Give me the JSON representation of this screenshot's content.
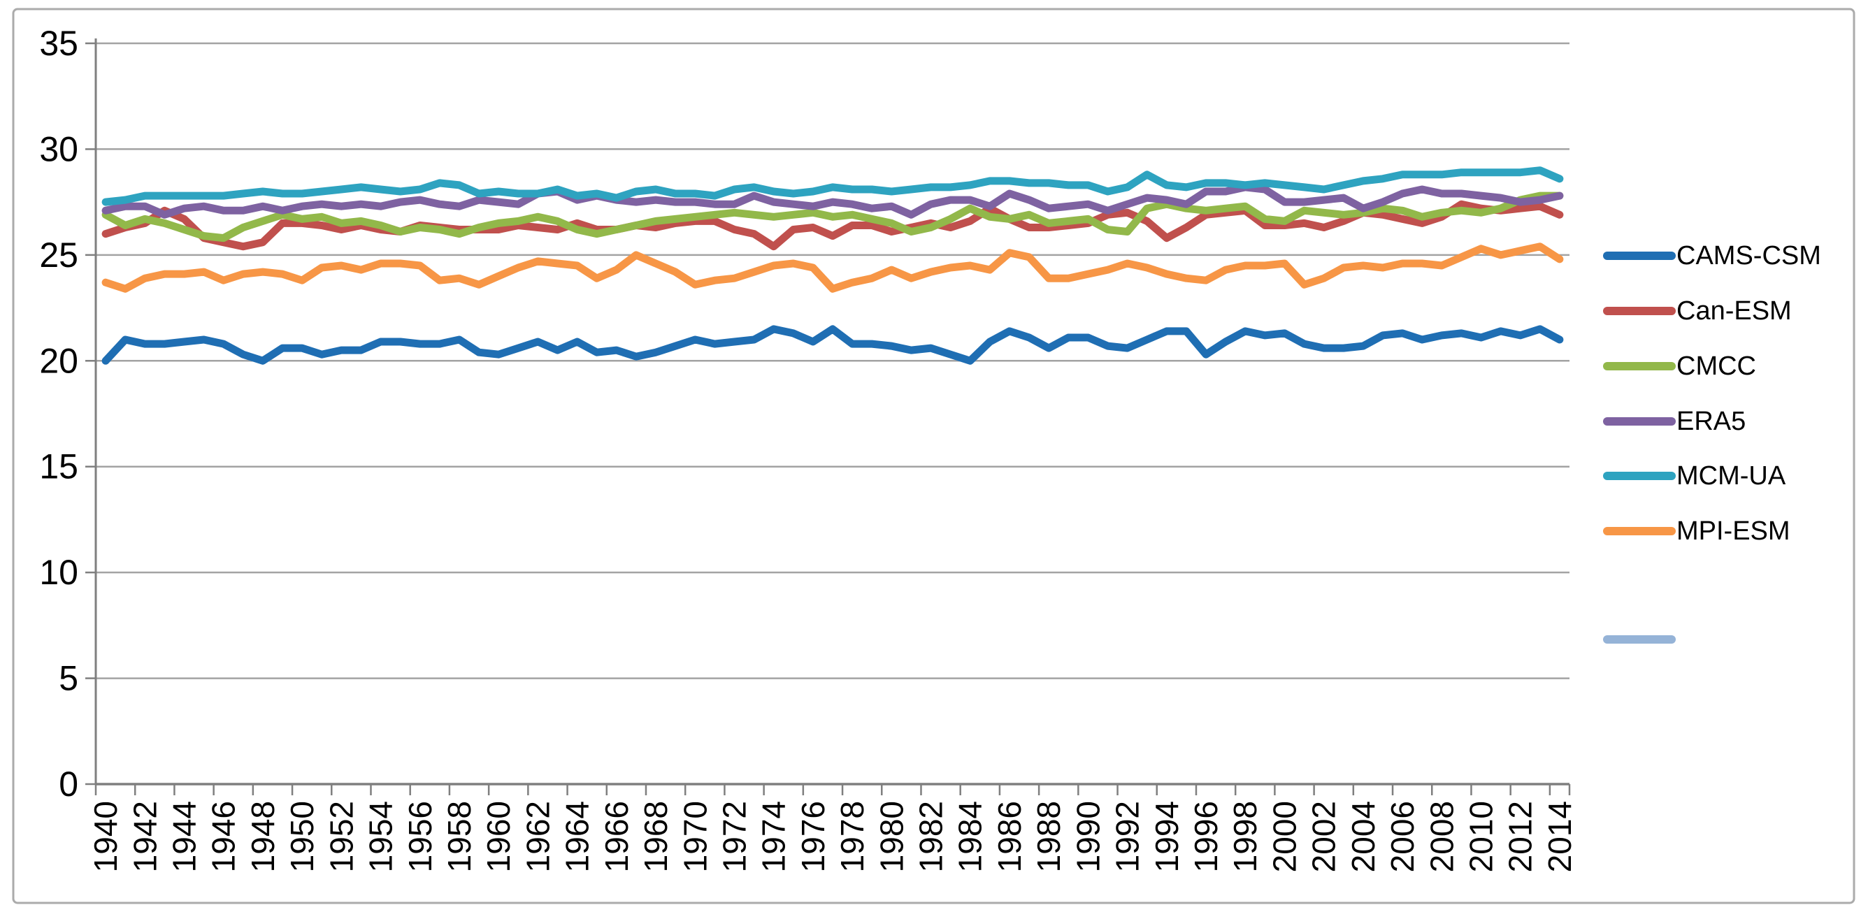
{
  "chart": {
    "background_color": "#ffffff",
    "border_color": "#ABABAB",
    "gridline_color": "#A3A3A3",
    "axis_color": "#7F7F7F",
    "text_color": "#000000",
    "y_axis": {
      "tick_labels": [
        "0",
        "5",
        "10",
        "15",
        "20",
        "25",
        "30",
        "35"
      ]
    },
    "x_axis": {
      "tick_labels": [
        "1940",
        "1942",
        "1944",
        "1946",
        "1948",
        "1950",
        "1952",
        "1954",
        "1956",
        "1958",
        "1960",
        "1962",
        "1964",
        "1966",
        "1968",
        "1970",
        "1972",
        "1974",
        "1976",
        "1978",
        "1980",
        "1982",
        "1984",
        "1986",
        "1988",
        "1990",
        "1992",
        "1994",
        "1996",
        "1998",
        "2000",
        "2002",
        "2004",
        "2006",
        "2008",
        "2010",
        "2012",
        "2014"
      ]
    },
    "legend": [
      {
        "label": "CAMS-CSM",
        "color": "#1F6EB3"
      },
      {
        "label": "Can-ESM",
        "color": "#C0504D"
      },
      {
        "label": "CMCC",
        "color": "#92B84A"
      },
      {
        "label": "ERA5",
        "color": "#7E62A1"
      },
      {
        "label": "MCM-UA",
        "color": "#2EA3C0"
      },
      {
        "label": "MPI-ESM",
        "color": "#F79646"
      },
      {
        "label": "",
        "color": "#95B3D7"
      }
    ]
  },
  "chart_data": {
    "type": "line",
    "title": "",
    "xlabel": "",
    "ylabel": "",
    "ylim": [
      0,
      35
    ],
    "ytick_step": 5,
    "grid": true,
    "legend_position": "right",
    "x_label_interval": 2,
    "x": [
      1940,
      1941,
      1942,
      1943,
      1944,
      1945,
      1946,
      1947,
      1948,
      1949,
      1950,
      1951,
      1952,
      1953,
      1954,
      1955,
      1956,
      1957,
      1958,
      1959,
      1960,
      1961,
      1962,
      1963,
      1964,
      1965,
      1966,
      1967,
      1968,
      1969,
      1970,
      1971,
      1972,
      1973,
      1974,
      1975,
      1976,
      1977,
      1978,
      1979,
      1980,
      1981,
      1982,
      1983,
      1984,
      1985,
      1986,
      1987,
      1988,
      1989,
      1990,
      1991,
      1992,
      1993,
      1994,
      1995,
      1996,
      1997,
      1998,
      1999,
      2000,
      2001,
      2002,
      2003,
      2004,
      2005,
      2006,
      2007,
      2008,
      2009,
      2010,
      2011,
      2012,
      2013,
      2014
    ],
    "series": [
      {
        "name": "CAMS-CSM",
        "color": "#1F6EB3",
        "values": [
          20.0,
          21.0,
          20.8,
          20.8,
          20.9,
          21.0,
          20.8,
          20.3,
          20.0,
          20.6,
          20.6,
          20.3,
          20.5,
          20.5,
          20.9,
          20.9,
          20.8,
          20.8,
          21.0,
          20.4,
          20.3,
          20.6,
          20.9,
          20.5,
          20.9,
          20.4,
          20.5,
          20.2,
          20.4,
          20.7,
          21.0,
          20.8,
          20.9,
          21.0,
          21.5,
          21.3,
          20.9,
          21.5,
          20.8,
          20.8,
          20.7,
          20.5,
          20.6,
          20.3,
          20.0,
          20.9,
          21.4,
          21.1,
          20.6,
          21.1,
          21.1,
          20.7,
          20.6,
          21.0,
          21.4,
          21.4,
          20.3,
          20.9,
          21.4,
          21.2,
          21.3,
          20.8,
          20.6,
          20.6,
          20.7,
          21.2,
          21.3,
          21.0,
          21.2,
          21.3,
          21.1,
          21.4,
          21.2,
          21.5,
          21.0
        ]
      },
      {
        "name": "Can-ESM",
        "color": "#C0504D",
        "values": [
          26.0,
          26.3,
          26.5,
          27.1,
          26.7,
          25.8,
          25.6,
          25.4,
          25.6,
          26.5,
          26.5,
          26.4,
          26.2,
          26.4,
          26.2,
          26.1,
          26.4,
          26.3,
          26.2,
          26.2,
          26.2,
          26.4,
          26.3,
          26.2,
          26.5,
          26.2,
          26.2,
          26.4,
          26.3,
          26.5,
          26.6,
          26.6,
          26.2,
          26.0,
          25.4,
          26.2,
          26.3,
          25.9,
          26.4,
          26.4,
          26.1,
          26.3,
          26.5,
          26.3,
          26.6,
          27.2,
          26.7,
          26.3,
          26.3,
          26.4,
          26.5,
          26.9,
          27.0,
          26.6,
          25.8,
          26.3,
          26.9,
          27.0,
          27.1,
          26.4,
          26.4,
          26.5,
          26.3,
          26.6,
          27.0,
          26.9,
          26.7,
          26.5,
          26.8,
          27.4,
          27.2,
          27.1,
          27.2,
          27.3,
          26.9
        ]
      },
      {
        "name": "CMCC",
        "color": "#92B84A",
        "values": [
          26.9,
          26.4,
          26.7,
          26.5,
          26.2,
          25.9,
          25.8,
          26.3,
          26.6,
          26.9,
          26.7,
          26.8,
          26.5,
          26.6,
          26.4,
          26.1,
          26.3,
          26.2,
          26.0,
          26.3,
          26.5,
          26.6,
          26.8,
          26.6,
          26.2,
          26.0,
          26.2,
          26.4,
          26.6,
          26.7,
          26.8,
          26.9,
          27.0,
          26.9,
          26.8,
          26.9,
          27.0,
          26.8,
          26.9,
          26.7,
          26.5,
          26.1,
          26.3,
          26.7,
          27.2,
          26.8,
          26.7,
          26.9,
          26.5,
          26.6,
          26.7,
          26.2,
          26.1,
          27.2,
          27.4,
          27.2,
          27.1,
          27.2,
          27.3,
          26.7,
          26.6,
          27.1,
          27.0,
          26.9,
          27.0,
          27.2,
          27.1,
          26.8,
          27.0,
          27.1,
          27.0,
          27.2,
          27.6,
          27.8,
          27.8
        ]
      },
      {
        "name": "ERA5",
        "color": "#7E62A1",
        "values": [
          27.1,
          27.3,
          27.3,
          26.9,
          27.2,
          27.3,
          27.1,
          27.1,
          27.3,
          27.1,
          27.3,
          27.4,
          27.3,
          27.4,
          27.3,
          27.5,
          27.6,
          27.4,
          27.3,
          27.6,
          27.5,
          27.4,
          27.9,
          28.0,
          27.6,
          27.8,
          27.6,
          27.5,
          27.6,
          27.5,
          27.5,
          27.4,
          27.4,
          27.8,
          27.5,
          27.4,
          27.3,
          27.5,
          27.4,
          27.2,
          27.3,
          26.9,
          27.4,
          27.6,
          27.6,
          27.3,
          27.9,
          27.6,
          27.2,
          27.3,
          27.4,
          27.1,
          27.4,
          27.7,
          27.6,
          27.4,
          28.0,
          28.0,
          28.2,
          28.1,
          27.5,
          27.5,
          27.6,
          27.7,
          27.2,
          27.5,
          27.9,
          28.1,
          27.9,
          27.9,
          27.8,
          27.7,
          27.5,
          27.6,
          27.8
        ]
      },
      {
        "name": "MCM-UA",
        "color": "#2EA3C0",
        "values": [
          27.5,
          27.6,
          27.8,
          27.8,
          27.8,
          27.8,
          27.8,
          27.9,
          28.0,
          27.9,
          27.9,
          28.0,
          28.1,
          28.2,
          28.1,
          28.0,
          28.1,
          28.4,
          28.3,
          27.9,
          28.0,
          27.9,
          27.9,
          28.1,
          27.8,
          27.9,
          27.7,
          28.0,
          28.1,
          27.9,
          27.9,
          27.8,
          28.1,
          28.2,
          28.0,
          27.9,
          28.0,
          28.2,
          28.1,
          28.1,
          28.0,
          28.1,
          28.2,
          28.2,
          28.3,
          28.5,
          28.5,
          28.4,
          28.4,
          28.3,
          28.3,
          28.0,
          28.2,
          28.8,
          28.3,
          28.2,
          28.4,
          28.4,
          28.3,
          28.4,
          28.3,
          28.2,
          28.1,
          28.3,
          28.5,
          28.6,
          28.8,
          28.8,
          28.8,
          28.9,
          28.9,
          28.9,
          28.9,
          29.0,
          28.6
        ]
      },
      {
        "name": "MPI-ESM",
        "color": "#F79646",
        "values": [
          23.7,
          23.4,
          23.9,
          24.1,
          24.1,
          24.2,
          23.8,
          24.1,
          24.2,
          24.1,
          23.8,
          24.4,
          24.5,
          24.3,
          24.6,
          24.6,
          24.5,
          23.8,
          23.9,
          23.6,
          24.0,
          24.4,
          24.7,
          24.6,
          24.5,
          23.9,
          24.3,
          25.0,
          24.6,
          24.2,
          23.6,
          23.8,
          23.9,
          24.2,
          24.5,
          24.6,
          24.4,
          23.4,
          23.7,
          23.9,
          24.3,
          23.9,
          24.2,
          24.4,
          24.5,
          24.3,
          25.1,
          24.9,
          23.9,
          23.9,
          24.1,
          24.3,
          24.6,
          24.4,
          24.1,
          23.9,
          23.8,
          24.3,
          24.5,
          24.5,
          24.6,
          23.6,
          23.9,
          24.4,
          24.5,
          24.4,
          24.6,
          24.6,
          24.5,
          24.9,
          25.3,
          25.0,
          25.2,
          25.4,
          24.8
        ]
      }
    ]
  }
}
